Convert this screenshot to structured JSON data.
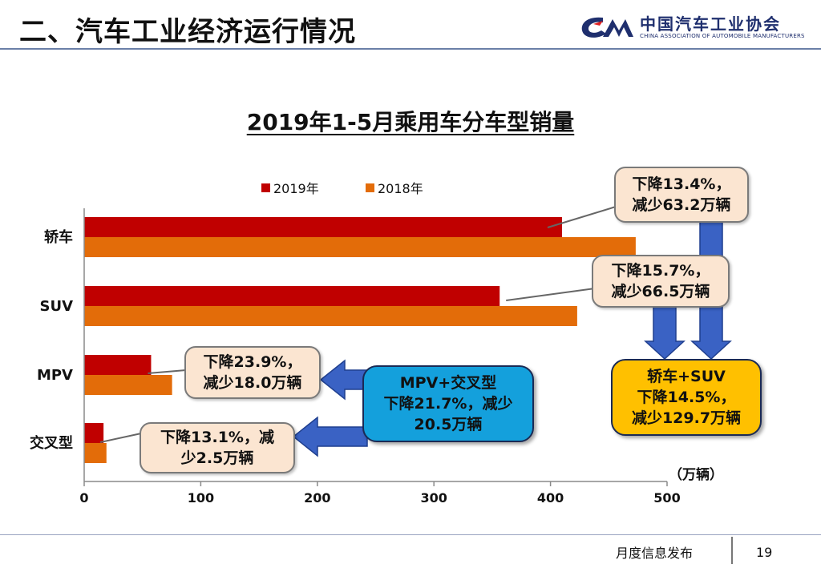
{
  "header": {
    "title": "二、汽车工业经济运行情况",
    "logo_cn": "中国汽车工业协会",
    "logo_en": "CHINA ASSOCIATION OF AUTOMOBILE MANUFACTURERS"
  },
  "chart_data": {
    "type": "bar",
    "orientation": "horizontal",
    "title": "2019年1-5月乘用车分车型销量",
    "unit": "（万辆）",
    "categories": [
      "轿车",
      "SUV",
      "MPV",
      "交叉型"
    ],
    "series": [
      {
        "name": "2019年",
        "color": "#c00000",
        "values": [
          409.9,
          356.4,
          57.4,
          16.6
        ]
      },
      {
        "name": "2018年",
        "color": "#e36c09",
        "values": [
          473.1,
          422.9,
          75.4,
          19.1
        ]
      }
    ],
    "xlim": [
      0,
      500
    ],
    "xticks": [
      0,
      100,
      200,
      300,
      400,
      500
    ],
    "legend_position": "top",
    "grid": false
  },
  "annotations": {
    "sedan": {
      "line1": "下降13.4%，",
      "line2": "减少63.2万辆"
    },
    "suv": {
      "line1": "下降15.7%，",
      "line2": "减少66.5万辆"
    },
    "mpv": {
      "line1": "下降23.9%，",
      "line2": "减少18.0万辆"
    },
    "cross": {
      "line1": "下降13.1%，减",
      "line2": "少2.5万辆"
    },
    "mpv_cross": {
      "line1": "MPV+交叉型",
      "line2": "下降21.7%，减少",
      "line3": "20.5万辆"
    },
    "sedan_suv": {
      "line1": "轿车+SUV",
      "line2": "下降14.5%，",
      "line3": "减少129.7万辆"
    }
  },
  "colors": {
    "arrow": "#3a62c4",
    "arrow_edge": "#1f3f8f"
  },
  "footer": {
    "label": "月度信息发布",
    "page": "19"
  }
}
